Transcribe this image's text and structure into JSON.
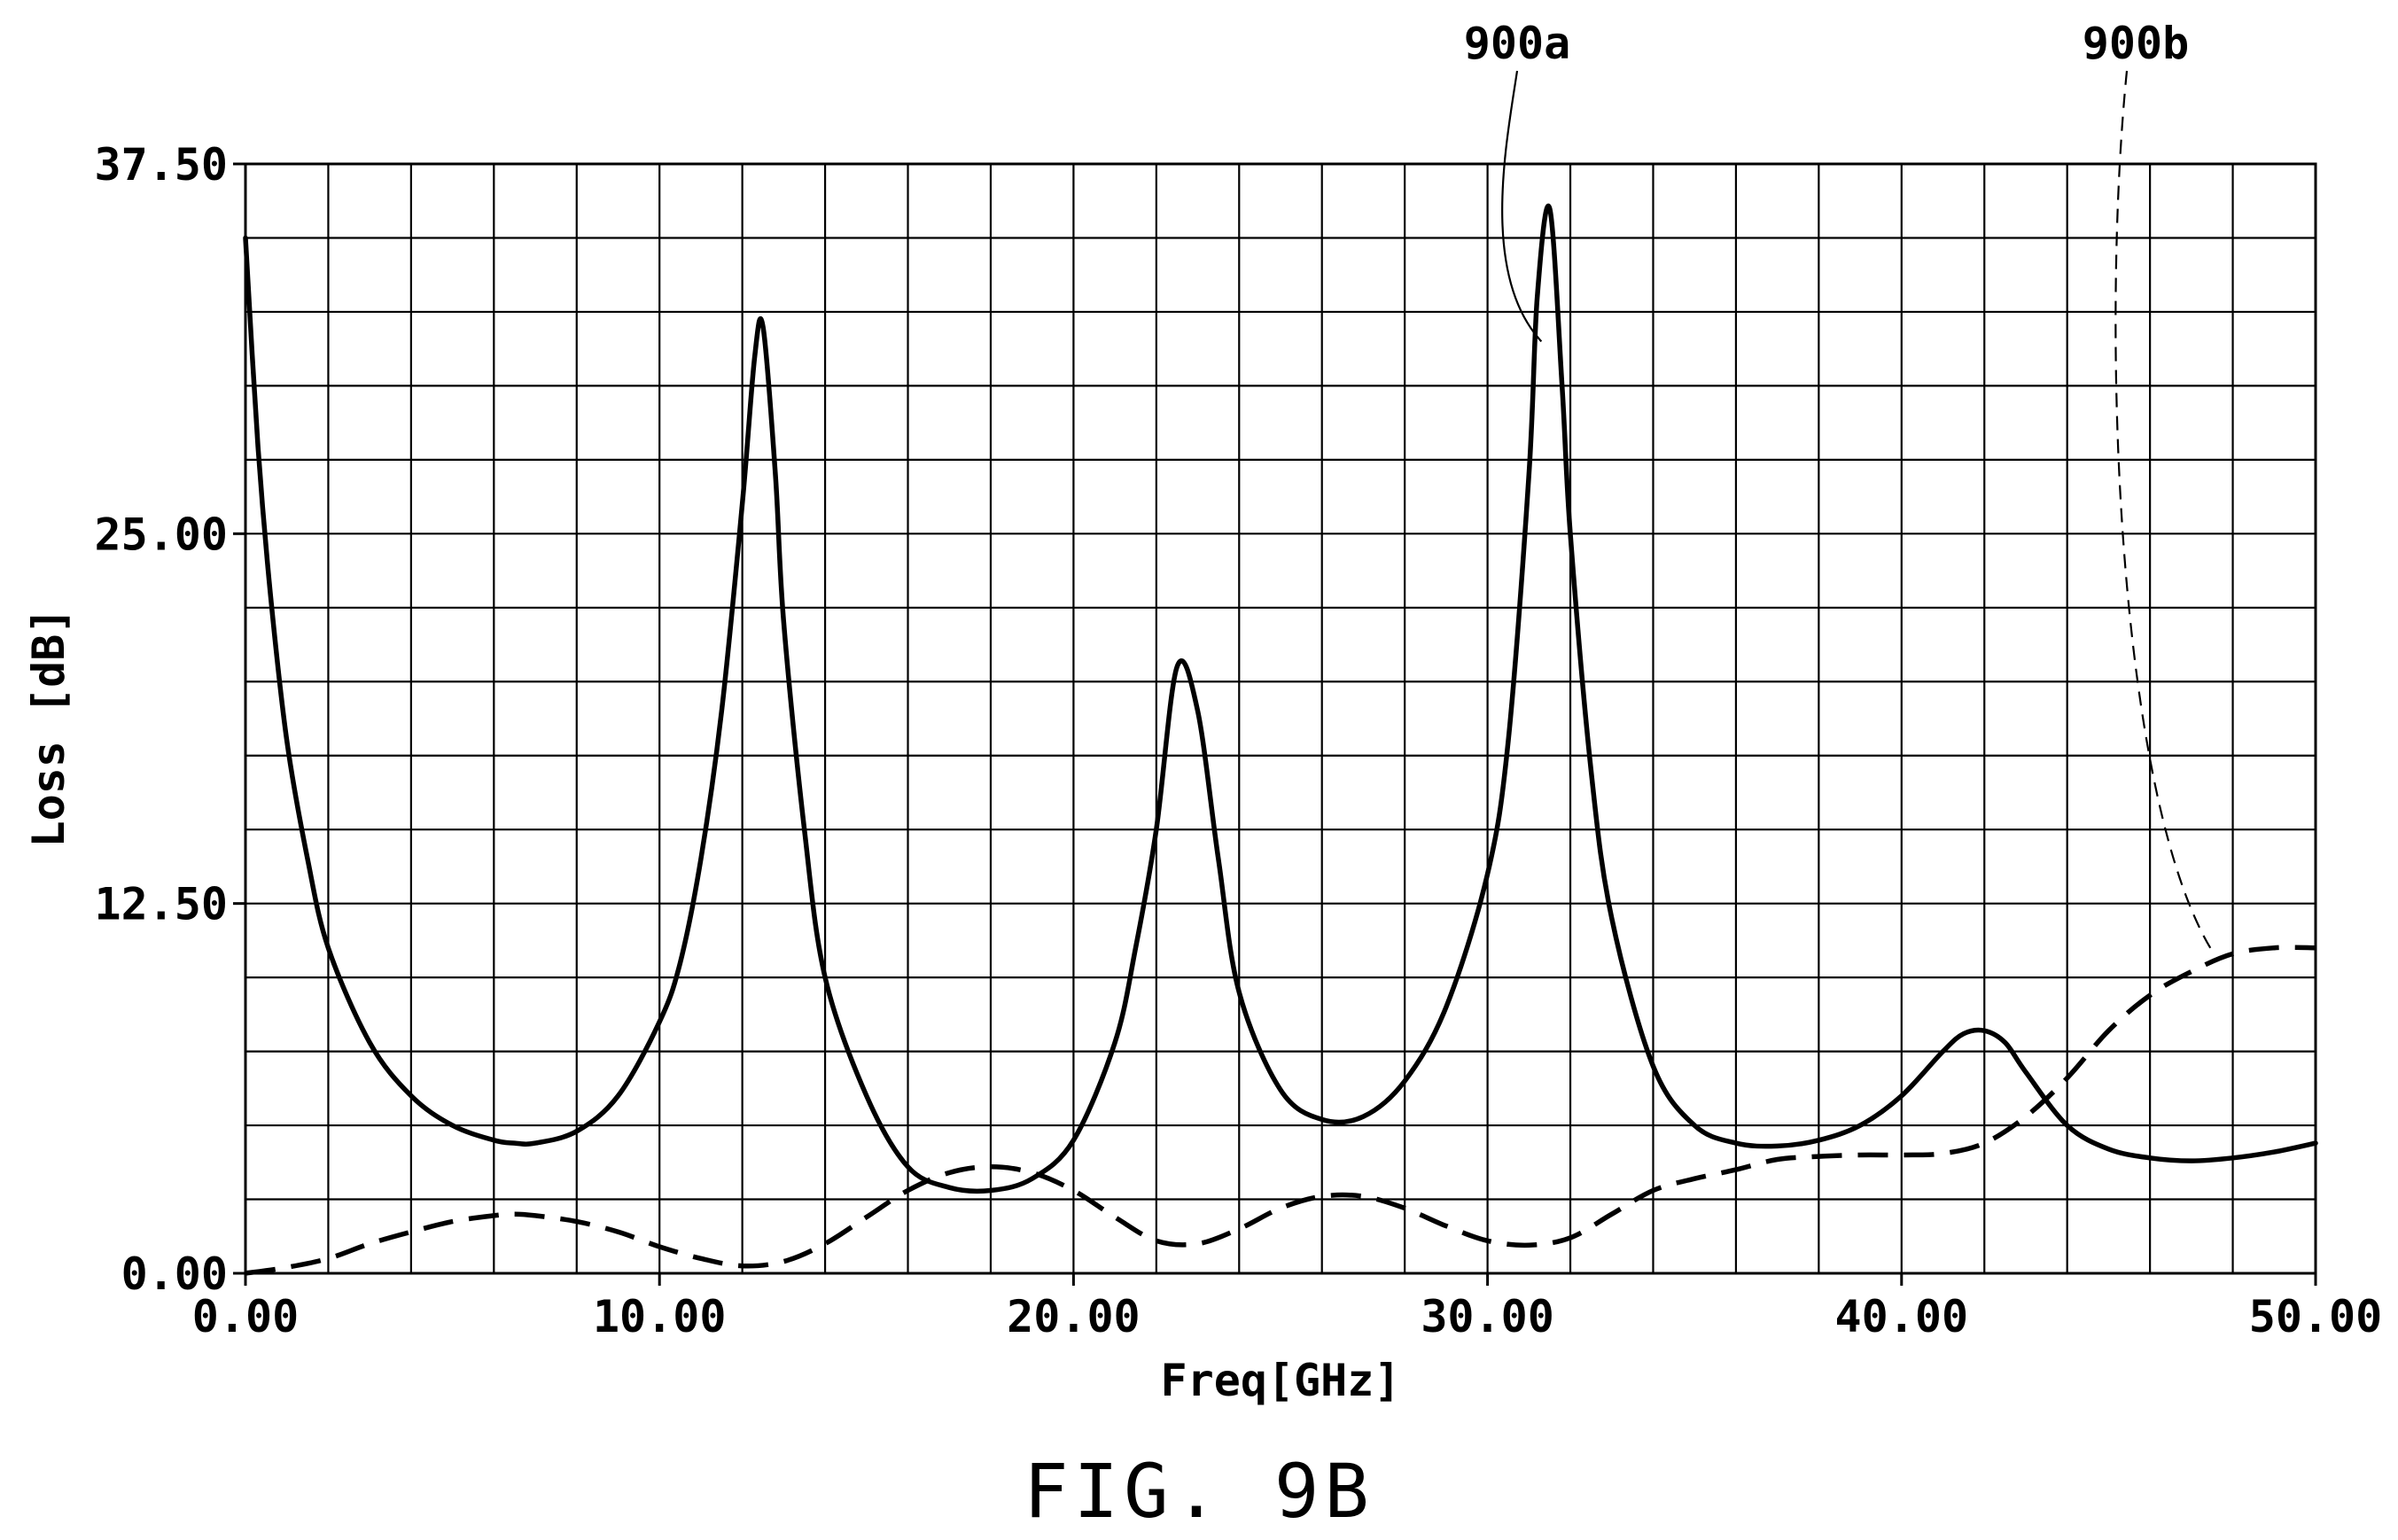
{
  "figure": {
    "caption": "FIG. 9B"
  },
  "chart_data": {
    "type": "line",
    "title": "",
    "xlabel": "Freq[GHz]",
    "ylabel": "Loss [dB]",
    "xlim": [
      0,
      50
    ],
    "ylim": [
      0,
      37.5
    ],
    "x_tick_labels": [
      "0.00",
      "10.00",
      "20.00",
      "30.00",
      "40.00",
      "50.00"
    ],
    "x_tick_values": [
      0,
      10,
      20,
      30,
      40,
      50
    ],
    "y_tick_labels": [
      "0.00",
      "12.50",
      "25.00",
      "37.50"
    ],
    "y_tick_values": [
      0,
      12.5,
      25,
      37.5
    ],
    "grid": true,
    "x_grid_step": 2,
    "y_grid_step": 2.5,
    "legend": "none",
    "series": [
      {
        "label": "900a",
        "style": "solid",
        "color": "#000000",
        "x": [
          0,
          0.3,
          0.6,
          1,
          1.5,
          2,
          3,
          4,
          5,
          6,
          6.5,
          7,
          8,
          9,
          10,
          10.5,
          11,
          11.5,
          12,
          12.3,
          12.5,
          12.8,
          13,
          13.5,
          14,
          15,
          16,
          17,
          18,
          19,
          20,
          21,
          21.5,
          22,
          22.5,
          23,
          23.5,
          24,
          25,
          26,
          27,
          28,
          29,
          30,
          30.5,
          31,
          31.2,
          31.5,
          31.8,
          32,
          32.5,
          33,
          34,
          35,
          36,
          37,
          38,
          39,
          40,
          41,
          41.5,
          42,
          42.5,
          43,
          44,
          45,
          46,
          47,
          48,
          49,
          50
        ],
        "y": [
          35,
          28,
          23,
          18,
          14,
          11,
          7.8,
          6,
          5,
          4.5,
          4.4,
          4.4,
          4.8,
          6,
          8.5,
          10.5,
          14,
          19,
          26,
          31,
          32,
          27,
          22,
          15,
          10,
          6,
          3.6,
          2.9,
          2.8,
          3.2,
          4.5,
          7.8,
          11,
          15,
          20.5,
          19,
          14,
          9.5,
          6.2,
          5.2,
          5.3,
          6.5,
          9,
          13.5,
          18,
          27,
          33,
          36,
          30,
          25,
          17,
          12,
          7,
          5,
          4.4,
          4.3,
          4.5,
          5,
          6,
          7.5,
          8.1,
          8.2,
          7.8,
          6.8,
          5,
          4.2,
          3.9,
          3.8,
          3.9,
          4.1,
          4.4
        ]
      },
      {
        "label": "900b",
        "style": "dashed",
        "color": "#000000",
        "x": [
          0,
          1,
          2,
          3,
          4,
          5,
          6,
          6.5,
          7,
          8,
          9,
          10,
          11,
          12,
          13,
          14,
          15,
          16,
          17,
          18,
          19,
          20,
          21,
          22,
          23,
          24,
          25,
          26,
          27,
          28,
          29,
          30,
          31,
          32,
          33,
          34,
          35,
          36,
          37,
          38,
          39,
          40,
          41,
          42,
          43,
          44,
          45,
          46,
          47,
          48,
          49,
          50
        ],
        "y": [
          0,
          0.2,
          0.5,
          1,
          1.4,
          1.75,
          1.95,
          2,
          1.95,
          1.75,
          1.4,
          0.9,
          0.5,
          0.25,
          0.4,
          1,
          1.9,
          2.8,
          3.4,
          3.6,
          3.4,
          2.8,
          1.9,
          1.1,
          1,
          1.5,
          2.2,
          2.6,
          2.6,
          2.2,
          1.6,
          1.1,
          0.95,
          1.2,
          2,
          2.8,
          3.2,
          3.5,
          3.85,
          3.95,
          4,
          4,
          4.05,
          4.4,
          5.3,
          6.6,
          8.2,
          9.4,
          10.2,
          10.8,
          11,
          11
        ]
      }
    ],
    "annotations": [
      {
        "text": "900a",
        "points_to_series": "900a",
        "leader": "solid",
        "target_x": 31.3,
        "target_y": 31.5
      },
      {
        "text": "900b",
        "points_to_series": "900b",
        "leader": "dashed",
        "target_x": 47.5,
        "target_y": 10.9
      }
    ]
  }
}
